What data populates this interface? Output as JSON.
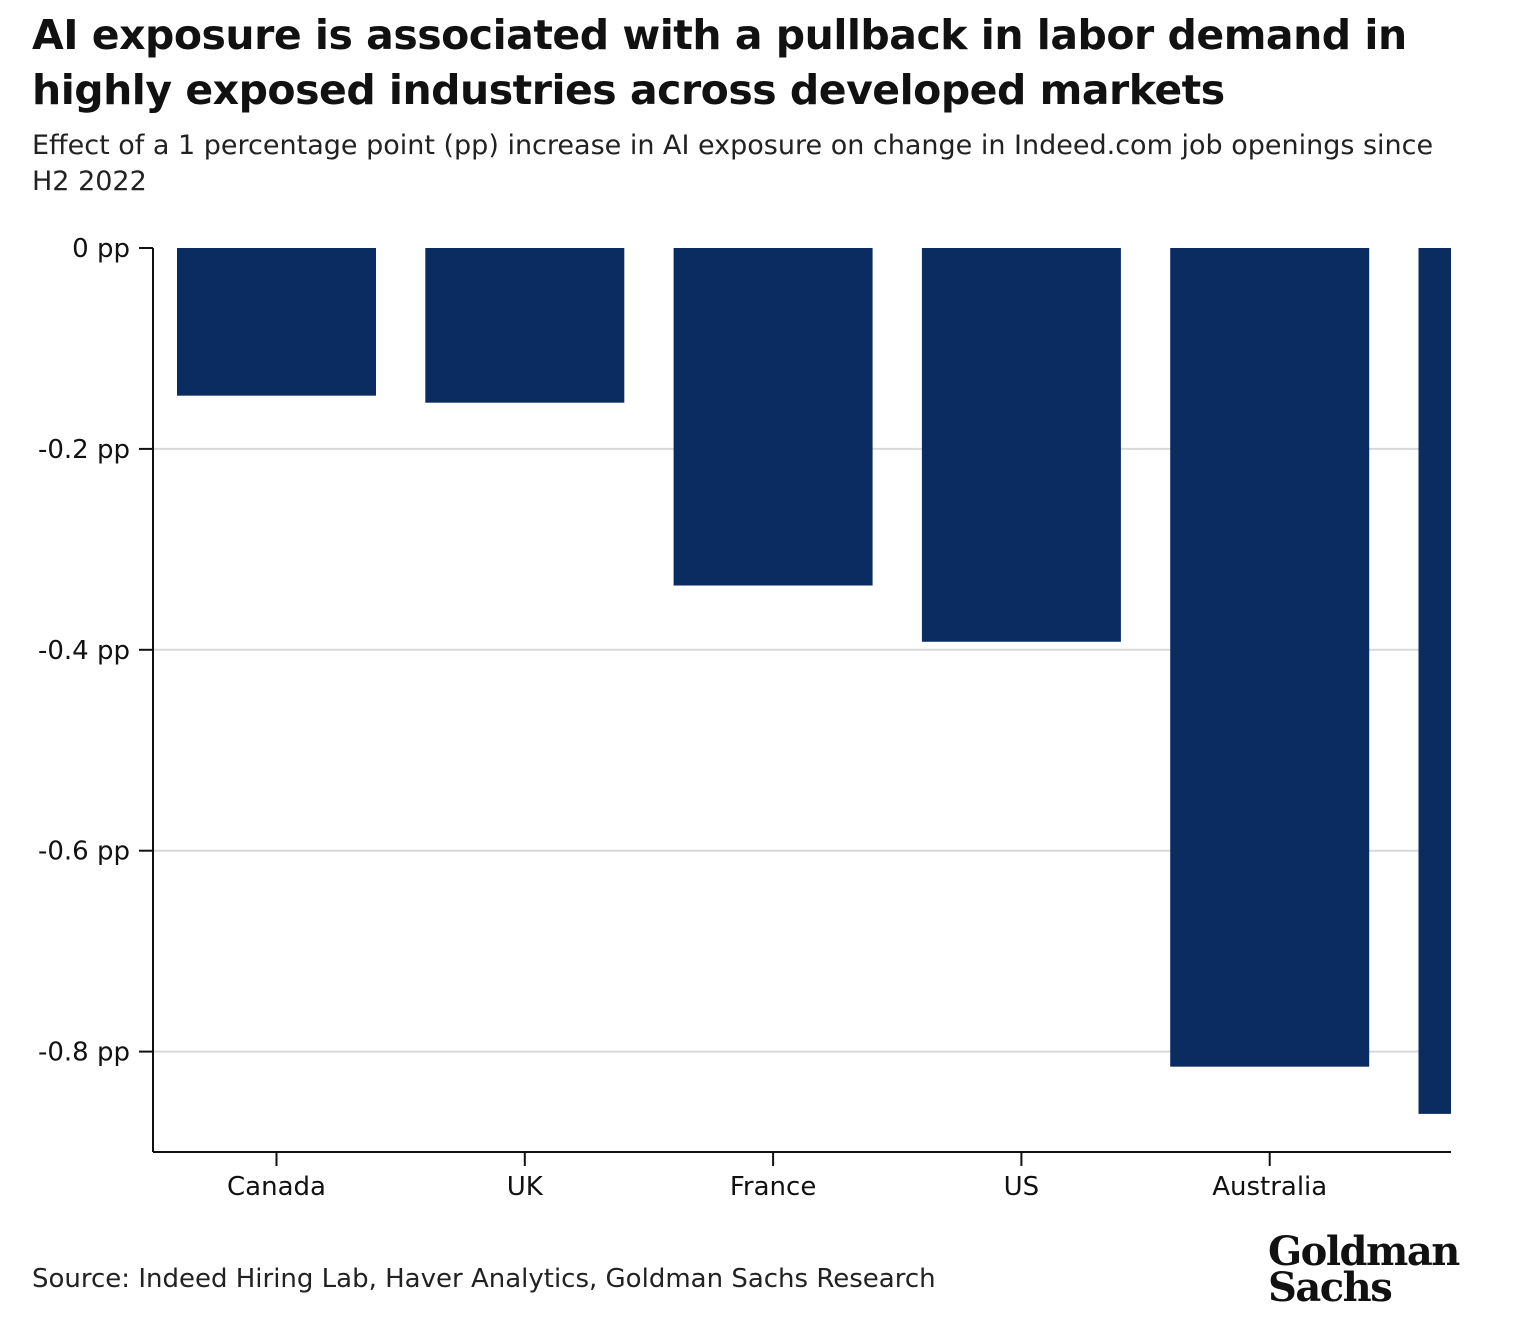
{
  "title": "AI exposure is associated with a pullback in labor demand in highly exposed industries across developed markets",
  "subtitle": "Effect of a 1 percentage point (pp) increase in AI exposure on change in Indeed.com job openings since H2 2022",
  "source": "Source: Indeed Hiring Lab, Haver Analytics, Goldman Sachs Research",
  "logo": {
    "line1": "Goldman",
    "line2": "Sachs"
  },
  "colors": {
    "bar": "#0b2c60",
    "grid": "#d9d9d9",
    "axis": "#111111"
  },
  "chart_data": {
    "type": "bar",
    "categories": [
      "Canada",
      "UK",
      "France",
      "US",
      "Australia",
      ""
    ],
    "values": [
      -0.147,
      -0.154,
      -0.336,
      -0.392,
      -0.815,
      -0.862
    ],
    "ylim": [
      -0.9,
      0
    ],
    "yticks": [
      0,
      -0.2,
      -0.4,
      -0.6,
      -0.8
    ],
    "ytick_labels": [
      "0 pp",
      "-0.2 pp",
      "-0.4 pp",
      "-0.6 pp",
      "-0.8 pp"
    ],
    "xlabel": "",
    "ylabel": "",
    "grid": true,
    "legend": "none"
  }
}
